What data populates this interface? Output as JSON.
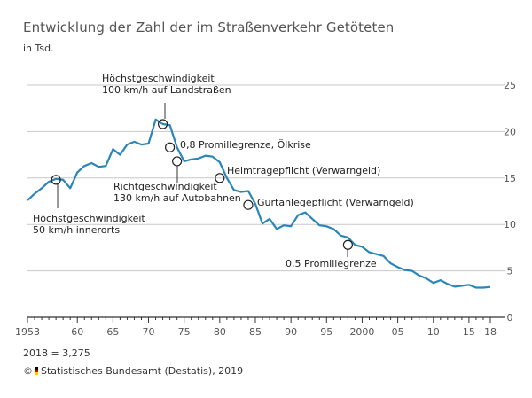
{
  "title": "Entwicklung der Zahl der im Straßenverkehr Getöteten",
  "subtitle": "in Tsd.",
  "footnote": "2018 = 3,275",
  "source": {
    "prefix": "©",
    "text": "Statistisches Bundesamt (Destatis), 2019"
  },
  "colors": {
    "line": "#2a86b8",
    "grid": "#c8c8c8",
    "axis": "#333333"
  },
  "chart_data": {
    "type": "line",
    "ylim": [
      0,
      25
    ],
    "xlim": [
      1953,
      2018
    ],
    "y_ticks": [
      0,
      5,
      10,
      15,
      20,
      25
    ],
    "x_ticks": [
      {
        "value": 1953,
        "label": "1953"
      },
      {
        "value": 1960,
        "label": "60"
      },
      {
        "value": 1965,
        "label": "65"
      },
      {
        "value": 1970,
        "label": "70"
      },
      {
        "value": 1975,
        "label": "75"
      },
      {
        "value": 1980,
        "label": "80"
      },
      {
        "value": 1985,
        "label": "85"
      },
      {
        "value": 1990,
        "label": "90"
      },
      {
        "value": 1995,
        "label": "95"
      },
      {
        "value": 2000,
        "label": "2000"
      },
      {
        "value": 2005,
        "label": "05"
      },
      {
        "value": 2010,
        "label": "10"
      },
      {
        "value": 2015,
        "label": "15"
      },
      {
        "value": 2018,
        "label": "18"
      }
    ],
    "grid": true,
    "y_axis_position": "right",
    "series": [
      {
        "x": [
          1953,
          1954,
          1955,
          1956,
          1957,
          1958,
          1959,
          1960,
          1961,
          1962,
          1963,
          1964,
          1965,
          1966,
          1967,
          1968,
          1969,
          1970,
          1971,
          1972,
          1973,
          1974,
          1975,
          1976,
          1977,
          1978,
          1979,
          1980,
          1981,
          1982,
          1983,
          1984,
          1985,
          1986,
          1987,
          1988,
          1989,
          1990,
          1991,
          1992,
          1993,
          1994,
          1995,
          1996,
          1997,
          1998,
          1999,
          2000,
          2001,
          2002,
          2003,
          2004,
          2005,
          2006,
          2007,
          2008,
          2009,
          2010,
          2011,
          2012,
          2013,
          2014,
          2015,
          2016,
          2017,
          2018
        ],
        "y": [
          12.6,
          13.3,
          13.9,
          14.6,
          14.9,
          14.8,
          13.9,
          15.6,
          16.3,
          16.6,
          16.2,
          16.3,
          18.1,
          17.5,
          18.6,
          18.9,
          18.6,
          18.7,
          21.3,
          20.8,
          20.7,
          18.3,
          16.8,
          17.0,
          17.1,
          17.4,
          17.3,
          16.7,
          15.0,
          13.7,
          13.5,
          13.6,
          12.2,
          10.1,
          10.6,
          9.5,
          9.9,
          9.8,
          11.0,
          11.3,
          10.6,
          9.9,
          9.8,
          9.5,
          8.8,
          8.6,
          7.8,
          7.6,
          7.0,
          6.8,
          6.6,
          5.8,
          5.4,
          5.1,
          5.0,
          4.5,
          4.2,
          3.7,
          4.0,
          3.6,
          3.3,
          3.4,
          3.5,
          3.2,
          3.2,
          3.275
        ]
      }
    ],
    "annotations": [
      {
        "id": "a1957",
        "x": 1957,
        "y": 14.8,
        "lines": [
          "Höchstgeschwindigkeit",
          "50 km/h innerorts"
        ]
      },
      {
        "id": "a1972",
        "x": 1972,
        "y": 20.8,
        "lines": [
          "Höchstgeschwindigkeit",
          "100 km/h auf Landstraßen"
        ]
      },
      {
        "id": "a1973",
        "x": 1973,
        "y": 18.3,
        "lines": [
          "0,8 Promillegrenze, Ölkrise"
        ]
      },
      {
        "id": "a1974",
        "x": 1974,
        "y": 16.8,
        "lines": [
          "Richtgeschwindigkeit",
          "130 km/h auf Autobahnen"
        ]
      },
      {
        "id": "a1980",
        "x": 1980,
        "y": 15.0,
        "lines": [
          "Helmtragepflicht (Verwarngeld)"
        ]
      },
      {
        "id": "a1984",
        "x": 1984,
        "y": 12.1,
        "lines": [
          "Gurtanlegepflicht (Verwarngeld)"
        ]
      },
      {
        "id": "a1998",
        "x": 1998,
        "y": 7.8,
        "lines": [
          "0,5 Promillegrenze"
        ]
      }
    ]
  }
}
